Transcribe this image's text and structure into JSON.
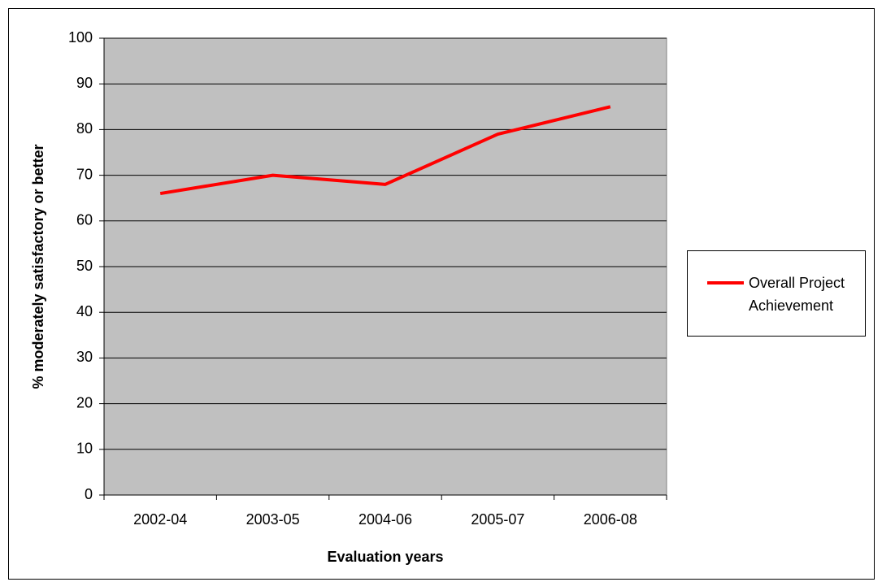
{
  "chart_data": {
    "type": "line",
    "categories": [
      "2002-04",
      "2003-05",
      "2004-06",
      "2005-07",
      "2006-08"
    ],
    "series": [
      {
        "name": "Overall Project Achievement",
        "color": "#ff0000",
        "values": [
          66,
          70,
          68,
          79,
          85
        ]
      }
    ],
    "ylim": [
      0,
      100
    ],
    "yticks": [
      0,
      10,
      20,
      30,
      40,
      50,
      60,
      70,
      80,
      90,
      100
    ],
    "x_label": "Evaluation years",
    "y_label": "% moderately satisfactory or better",
    "grid": true,
    "legend": "right"
  }
}
